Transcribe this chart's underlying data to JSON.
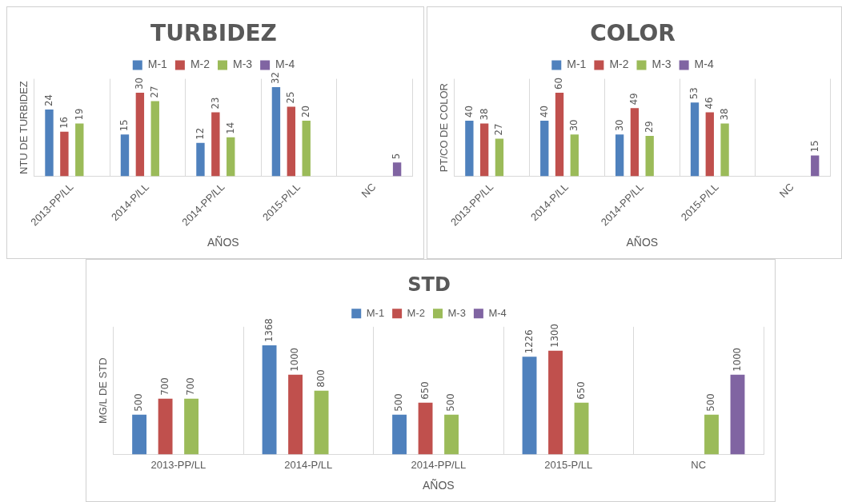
{
  "chart_data": [
    {
      "type": "bar",
      "title": "TURBIDEZ",
      "xlabel": "AÑOS",
      "ylabel": "NTU DE TURBIDEZ",
      "categories": [
        "2013-PP/LL",
        "2014-P/LL",
        "2014-PP/LL",
        "2015-P/LL",
        "NC"
      ],
      "series": [
        {
          "name": "M-1",
          "color": "#4f81bd",
          "values": [
            24,
            15,
            12,
            32,
            null
          ]
        },
        {
          "name": "M-2",
          "color": "#c0504d",
          "values": [
            16,
            30,
            23,
            25,
            null
          ]
        },
        {
          "name": "M-3",
          "color": "#9bbb59",
          "values": [
            19,
            27,
            14,
            20,
            null
          ]
        },
        {
          "name": "M-4",
          "color": "#8064a2",
          "values": [
            null,
            null,
            null,
            null,
            5
          ]
        }
      ],
      "data_labels": true,
      "legend": "top",
      "grid": "x",
      "tick_labels": "x"
    },
    {
      "type": "bar",
      "title": "COLOR",
      "xlabel": "AÑOS",
      "ylabel": "PT/CO DE COLOR",
      "categories": [
        "2013-PP/LL",
        "2014-P/LL",
        "2014-PP/LL",
        "2015-P/LL",
        "NC"
      ],
      "series": [
        {
          "name": "M-1",
          "color": "#4f81bd",
          "values": [
            40,
            40,
            30,
            53,
            null
          ]
        },
        {
          "name": "M-2",
          "color": "#c0504d",
          "values": [
            38,
            60,
            49,
            46,
            null
          ]
        },
        {
          "name": "M-3",
          "color": "#9bbb59",
          "values": [
            27,
            30,
            29,
            38,
            null
          ]
        },
        {
          "name": "M-4",
          "color": "#8064a2",
          "values": [
            null,
            null,
            null,
            null,
            15
          ]
        }
      ],
      "data_labels": true,
      "legend": "top",
      "grid": "x",
      "tick_labels": "x"
    },
    {
      "type": "bar",
      "title": "STD",
      "xlabel": "AÑOS",
      "ylabel": "MG/L DE STD",
      "categories": [
        "2013-PP/LL",
        "2014-P/LL",
        "2014-PP/LL",
        "2015-P/LL",
        "NC"
      ],
      "series": [
        {
          "name": "M-1",
          "color": "#4f81bd",
          "values": [
            500,
            1368,
            500,
            1226,
            null
          ]
        },
        {
          "name": "M-2",
          "color": "#c0504d",
          "values": [
            700,
            1000,
            650,
            1300,
            null
          ]
        },
        {
          "name": "M-3",
          "color": "#9bbb59",
          "values": [
            700,
            800,
            500,
            650,
            500
          ]
        },
        {
          "name": "M-4",
          "color": "#8064a2",
          "values": [
            null,
            null,
            null,
            null,
            1000
          ]
        }
      ],
      "data_labels": true,
      "legend": "top",
      "grid": "x",
      "tick_labels": "x"
    }
  ]
}
